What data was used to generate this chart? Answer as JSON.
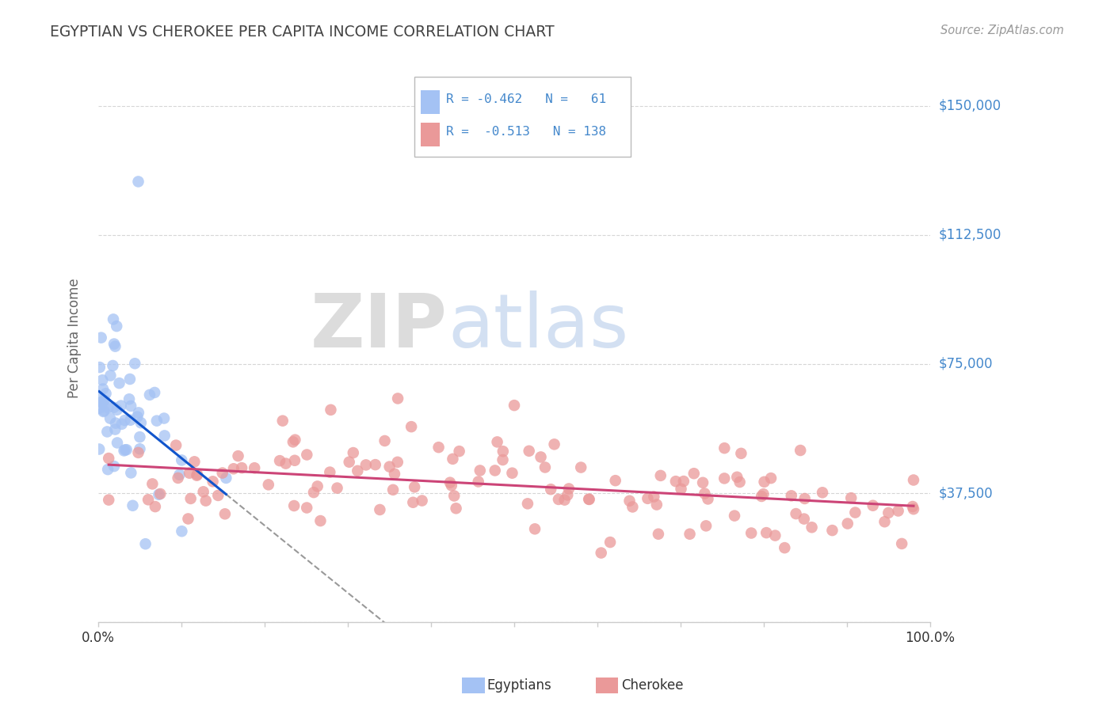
{
  "title": "EGYPTIAN VS CHEROKEE PER CAPITA INCOME CORRELATION CHART",
  "source": "Source: ZipAtlas.com",
  "ylabel": "Per Capita Income",
  "xlim": [
    0.0,
    1.0
  ],
  "ylim": [
    0,
    165000
  ],
  "yticks": [
    0,
    37500,
    75000,
    112500,
    150000
  ],
  "ytick_labels": [
    "",
    "$37,500",
    "$75,000",
    "$112,500",
    "$150,000"
  ],
  "color_egyptian": "#a4c2f4",
  "color_cherokee": "#ea9999",
  "color_line_egyptian": "#1155cc",
  "color_line_cherokee": "#cc4477",
  "color_dashed_line": "#999999",
  "watermark_zip": "ZIP",
  "watermark_atlas": "atlas",
  "watermark_zip_color": "#c0c0c0",
  "watermark_atlas_color": "#b0c8e8",
  "background_color": "#ffffff",
  "grid_color": "#cccccc",
  "title_color": "#444444",
  "axis_label_color": "#666666",
  "ytick_color": "#4488cc",
  "legend_color": "#4488cc",
  "legend_r1": "R = -0.462",
  "legend_n1": "N =  61",
  "legend_r2": "R =  -0.513",
  "legend_n2": "N = 138",
  "egyptian_N": 61,
  "cherokee_N": 138
}
